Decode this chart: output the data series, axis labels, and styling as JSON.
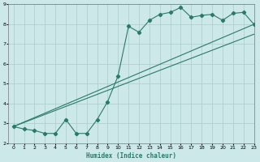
{
  "xlabel": "Humidex (Indice chaleur)",
  "xlim": [
    -0.5,
    23
  ],
  "ylim": [
    2,
    9
  ],
  "xticks": [
    0,
    1,
    2,
    3,
    4,
    5,
    6,
    7,
    8,
    9,
    10,
    11,
    12,
    13,
    14,
    15,
    16,
    17,
    18,
    19,
    20,
    21,
    22,
    23
  ],
  "yticks": [
    2,
    3,
    4,
    5,
    6,
    7,
    8,
    9
  ],
  "bg_color": "#cce8e8",
  "grid_color": "#aacccc",
  "line_color": "#2a7a6a",
  "line1_x": [
    0,
    1,
    2,
    3,
    4,
    5,
    6,
    7,
    8,
    9,
    10,
    11,
    12,
    13,
    14,
    15,
    16,
    17,
    18,
    19,
    20,
    21,
    22,
    23
  ],
  "line1_y": [
    2.85,
    2.72,
    2.65,
    2.5,
    2.5,
    3.2,
    2.5,
    2.5,
    3.2,
    4.1,
    5.4,
    7.9,
    7.6,
    8.2,
    8.5,
    8.6,
    8.85,
    8.35,
    8.45,
    8.5,
    8.2,
    8.55,
    8.6,
    8.0
  ],
  "line2_x": [
    0,
    23
  ],
  "line2_y": [
    2.85,
    8.0
  ],
  "line3_x": [
    0,
    23
  ],
  "line3_y": [
    2.85,
    7.5
  ]
}
